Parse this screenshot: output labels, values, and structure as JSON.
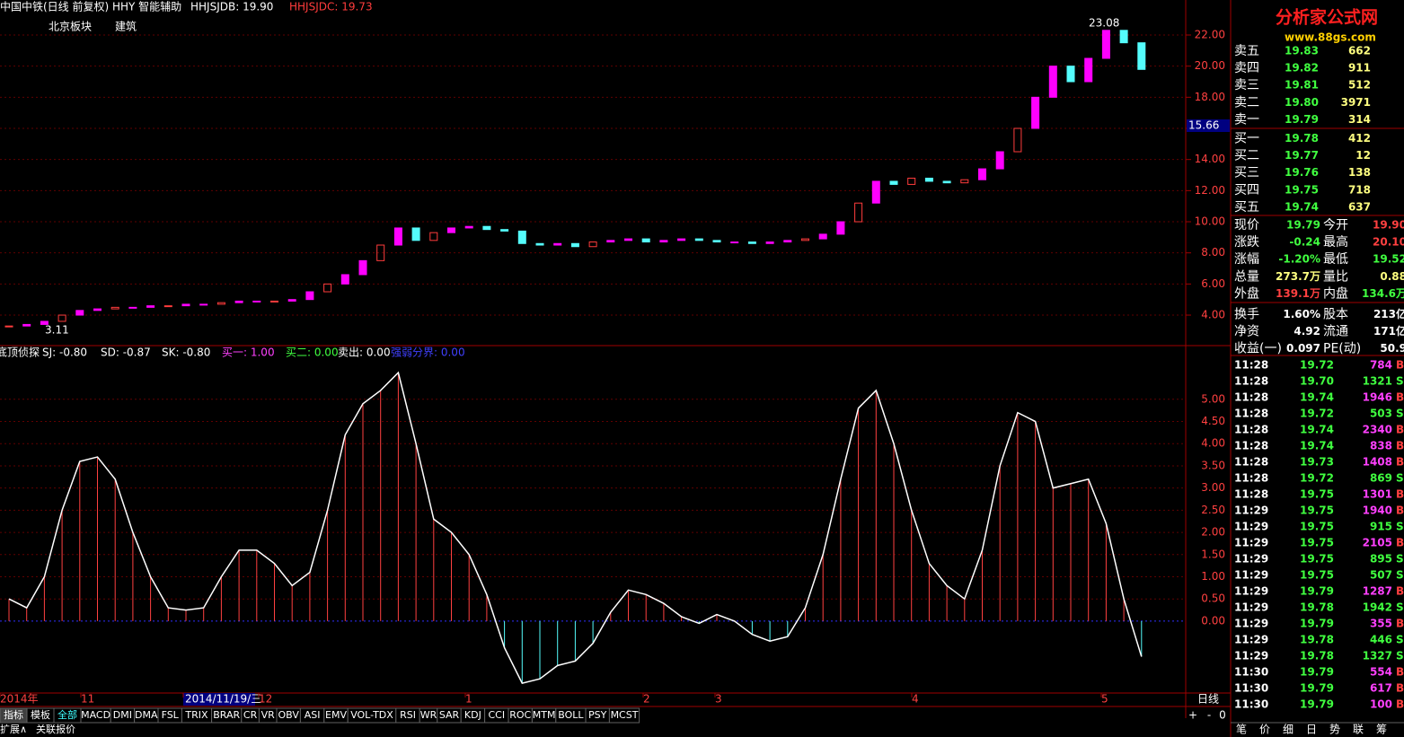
{
  "header": {
    "title": "中国中铁(日线 前复权) HHY 智能辅助",
    "line_b": "HHJSJDB: 19.90",
    "line_c": "HHJSJDC: 19.73",
    "sector": "北京板块",
    "industry": "建筑"
  },
  "logo": {
    "name": "分析家公式网",
    "url": "www.88gs.com"
  },
  "price_chart": {
    "closes": [
      3.3,
      3.4,
      3.6,
      4.0,
      4.3,
      4.4,
      4.5,
      4.5,
      4.6,
      4.6,
      4.7,
      4.7,
      4.8,
      4.9,
      4.9,
      4.9,
      5.0,
      5.5,
      6.0,
      6.6,
      7.5,
      8.5,
      9.6,
      8.8,
      9.3,
      9.6,
      9.7,
      9.5,
      9.4,
      8.6,
      8.5,
      8.6,
      8.4,
      8.7,
      8.8,
      8.9,
      8.7,
      8.8,
      8.9,
      8.8,
      8.7,
      8.7,
      8.6,
      8.7,
      8.8,
      8.9,
      9.2,
      10.0,
      11.2,
      12.6,
      12.4,
      12.8,
      12.6,
      12.5,
      12.7,
      13.4,
      14.5,
      16.0,
      18.0,
      20.0,
      19.0,
      20.5,
      22.3,
      21.5,
      19.79
    ],
    "ylim": [
      2.04,
      24.25
    ],
    "yticks": [
      {
        "value": 4,
        "label": "4.00"
      },
      {
        "value": 6,
        "label": "6.00"
      },
      {
        "value": 8,
        "label": "8.00"
      },
      {
        "value": 10,
        "label": "10.00"
      },
      {
        "value": 12,
        "label": "12.00"
      },
      {
        "value": 14,
        "label": "14.00"
      },
      {
        "value": 16,
        "label": "16.00"
      },
      {
        "value": 18,
        "label": "18.00"
      },
      {
        "value": 20,
        "label": "20.00"
      },
      {
        "value": 22,
        "label": "22.00"
      }
    ],
    "high_label": "23.08",
    "low_label": "3.11",
    "cursor_label": "15.66"
  },
  "indicator": {
    "name": "底顶侦探",
    "legend": [
      "SJ: -0.80",
      "SD: -0.87",
      "SK: -0.80",
      "买一: 1.00",
      "买二: 0.00",
      "卖出: 0.00",
      "强弱分界: 0.00"
    ],
    "sj": [
      0.5,
      0.3,
      1.0,
      2.5,
      3.6,
      3.7,
      3.2,
      2.0,
      1.0,
      0.3,
      0.25,
      0.3,
      1.0,
      1.6,
      1.6,
      1.3,
      0.8,
      1.1,
      2.5,
      4.2,
      4.9,
      5.2,
      5.6,
      4.0,
      2.3,
      2.0,
      1.5,
      0.6,
      -0.6,
      -1.4,
      -1.3,
      -1.0,
      -0.9,
      -0.5,
      0.2,
      0.7,
      0.6,
      0.4,
      0.1,
      -0.05,
      0.15,
      0.0,
      -0.3,
      -0.45,
      -0.35,
      0.3,
      1.5,
      3.2,
      4.8,
      5.2,
      4.0,
      2.5,
      1.3,
      0.8,
      0.5,
      1.6,
      3.5,
      4.7,
      4.5,
      3.0,
      3.1,
      3.2,
      2.2,
      0.5,
      -0.8
    ],
    "ylim": [
      -1.62,
      6.21
    ],
    "yticks": [
      {
        "value": 0,
        "label": "0.00"
      },
      {
        "value": 0.5,
        "label": "0.50"
      },
      {
        "value": 1,
        "label": "1.00"
      },
      {
        "value": 1.5,
        "label": "1.50"
      },
      {
        "value": 2,
        "label": "2.00"
      },
      {
        "value": 2.5,
        "label": "2.50"
      },
      {
        "value": 3,
        "label": "3.00"
      },
      {
        "value": 3.5,
        "label": "3.50"
      },
      {
        "value": 4,
        "label": "4.00"
      },
      {
        "value": 4.5,
        "label": "4.50"
      },
      {
        "value": 5,
        "label": "5.00"
      }
    ]
  },
  "dates": [
    "2014年",
    "11",
    "2014/11/19/三",
    "12",
    "1",
    "2",
    "3",
    "4",
    "5"
  ],
  "period": "日线",
  "controls": [
    "+",
    "-",
    "0"
  ],
  "order_book": [
    [
      "卖五",
      "19.83",
      "662"
    ],
    [
      "卖四",
      "19.82",
      "911"
    ],
    [
      "卖三",
      "19.81",
      "512"
    ],
    [
      "卖二",
      "19.80",
      "3971"
    ],
    [
      "卖一",
      "19.79",
      "314"
    ],
    [
      "买一",
      "19.78",
      "412"
    ],
    [
      "买二",
      "19.77",
      "12"
    ],
    [
      "买三",
      "19.76",
      "138"
    ],
    [
      "买四",
      "19.75",
      "718"
    ],
    [
      "买五",
      "19.74",
      "637"
    ]
  ],
  "quote": [
    [
      "现价",
      "19.79",
      "今开",
      "19.90"
    ],
    [
      "涨跌",
      "-0.24",
      "最高",
      "20.10"
    ],
    [
      "涨幅",
      "-1.20%",
      "最低",
      "19.52"
    ],
    [
      "总量",
      "273.7万",
      "量比",
      "0.88"
    ],
    [
      "外盘",
      "139.1万",
      "内盘",
      "134.6万"
    ],
    [
      "换手",
      "1.60%",
      "股本",
      "213亿"
    ],
    [
      "净资",
      "4.92",
      "流通",
      "171亿"
    ],
    [
      "收益(一)",
      "0.097",
      "PE(动)",
      "50.9"
    ]
  ],
  "ticks": [
    [
      "11:28",
      "19.72",
      "784",
      "B"
    ],
    [
      "11:28",
      "19.70",
      "1321",
      "S"
    ],
    [
      "11:28",
      "19.74",
      "1946",
      "B"
    ],
    [
      "11:28",
      "19.72",
      "503",
      "S"
    ],
    [
      "11:28",
      "19.74",
      "2340",
      "B"
    ],
    [
      "11:28",
      "19.74",
      "838",
      "B"
    ],
    [
      "11:28",
      "19.73",
      "1408",
      "B"
    ],
    [
      "11:28",
      "19.72",
      "869",
      "S"
    ],
    [
      "11:28",
      "19.75",
      "1301",
      "B"
    ],
    [
      "11:29",
      "19.75",
      "1940",
      "B"
    ],
    [
      "11:29",
      "19.75",
      "915",
      "S"
    ],
    [
      "11:29",
      "19.75",
      "2105",
      "B"
    ],
    [
      "11:29",
      "19.75",
      "895",
      "S"
    ],
    [
      "11:29",
      "19.75",
      "507",
      "S"
    ],
    [
      "11:29",
      "19.79",
      "1287",
      "B"
    ],
    [
      "11:29",
      "19.78",
      "1942",
      "S"
    ],
    [
      "11:29",
      "19.79",
      "355",
      "B"
    ],
    [
      "11:29",
      "19.78",
      "446",
      "S"
    ],
    [
      "11:29",
      "19.78",
      "1327",
      "S"
    ],
    [
      "11:30",
      "19.79",
      "554",
      "B"
    ],
    [
      "11:30",
      "19.79",
      "617",
      "B"
    ],
    [
      "11:30",
      "19.79",
      "100",
      "B"
    ]
  ],
  "tabs": [
    "指标",
    "模板",
    "全部",
    "MACD",
    "DMI",
    "DMA",
    "FSL",
    "TRIX",
    "BRAR",
    "CR",
    "VR",
    "OBV",
    "ASI",
    "EMV",
    "VOL-TDX",
    "RSI",
    "WR",
    "SAR",
    "KDJ",
    "CCI",
    "ROC",
    "MTM",
    "BOLL",
    "PSY",
    "MCST"
  ],
  "tabs2": [
    "扩展∧",
    "关联报价"
  ],
  "side_tabs": [
    "笔",
    "价",
    "细",
    "日",
    "势",
    "联",
    "筹"
  ]
}
